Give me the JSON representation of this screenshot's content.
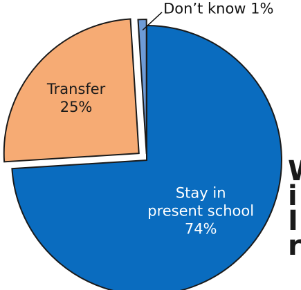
{
  "chart_data": {
    "type": "pie",
    "title": "",
    "slices": [
      {
        "label": "Stay in present school",
        "value": 74,
        "value_label": "74%",
        "label_lines": [
          "Stay in",
          "present school"
        ],
        "color": "#0a6cbf",
        "text_color": "#ffffff",
        "exploded": false
      },
      {
        "label": "Transfer",
        "value": 25,
        "value_label": "25%",
        "label_lines": [
          "Transfer"
        ],
        "color": "#f6ab74",
        "text_color": "#1a1a1a",
        "exploded": true
      },
      {
        "label": "Don’t know",
        "value": 1,
        "value_label": "1%",
        "callout_text": "Don’t know 1%",
        "color": "#6e9bd6",
        "text_color": "#1a1a1a",
        "exploded": true
      }
    ],
    "start_angle_deg": -90,
    "direction": "clockwise",
    "legend": "none"
  },
  "cut_off_text_lines": [
    "W",
    "i",
    "I",
    "r"
  ]
}
